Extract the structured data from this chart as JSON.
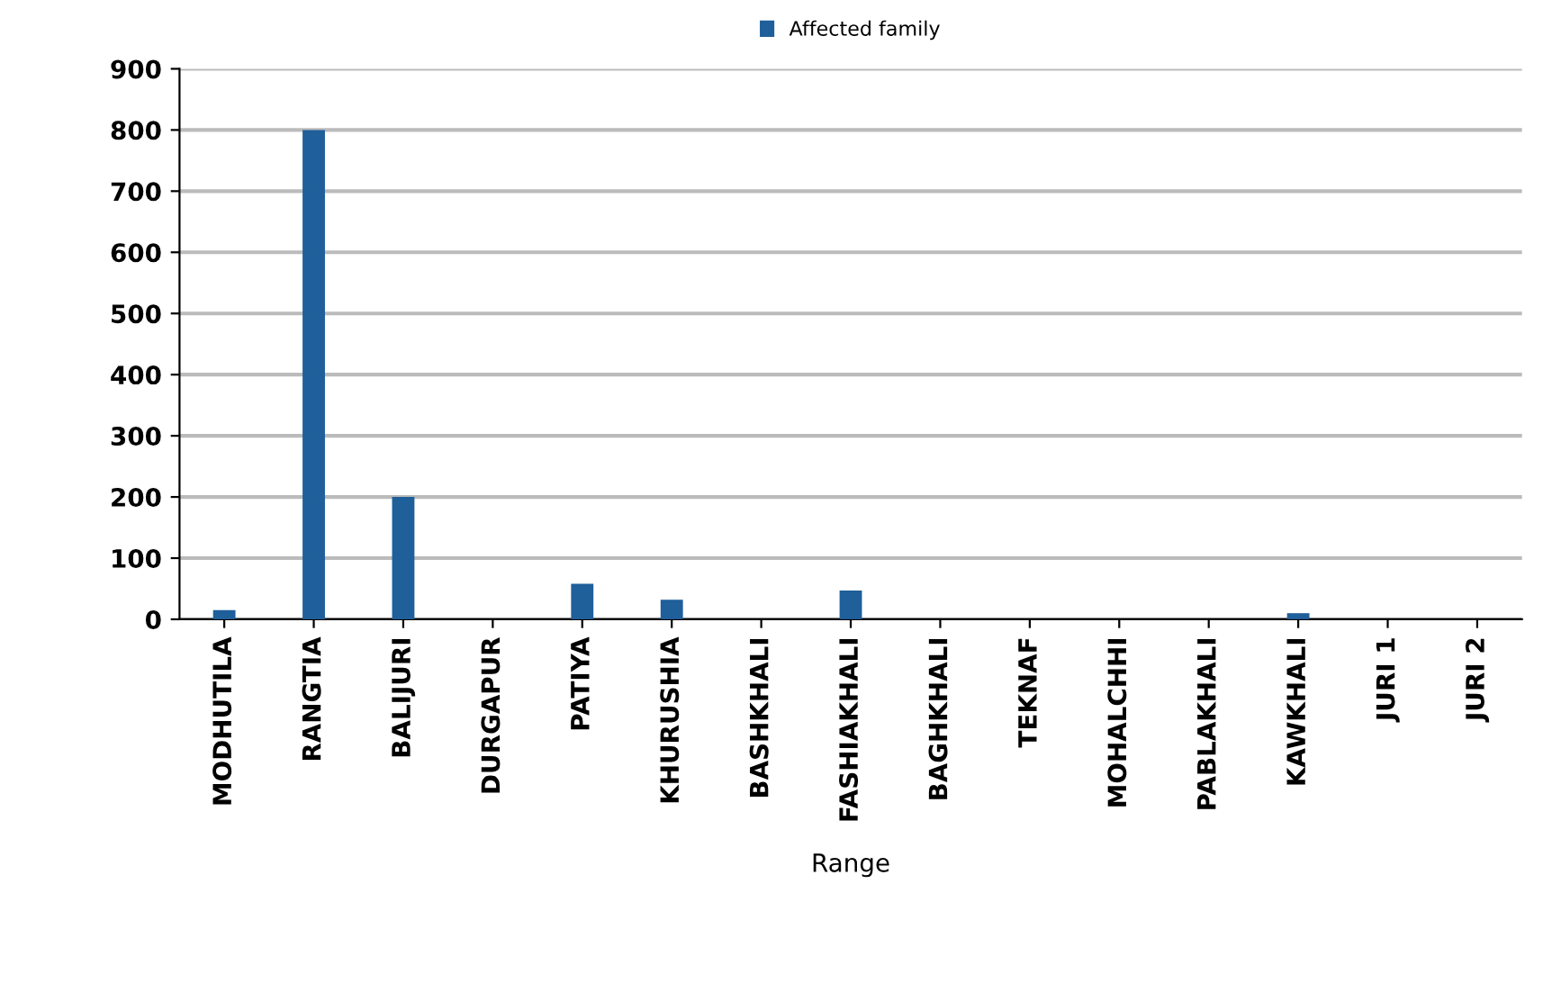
{
  "chart_data": {
    "type": "bar",
    "xlabel": "Range",
    "categories": [
      "MODHUTILA",
      "RANGTIA",
      "BALIJURI",
      "DURGAPUR",
      "PATIYA",
      "KHURUSHIA",
      "BASHKHALI",
      "FASHIAKHALI",
      "BAGHKHALI",
      "TEKNAF",
      "MOHALCHHI",
      "PABLAKHALI",
      "KAWKHALI",
      "JURI 1",
      "JURI 2"
    ],
    "series": [
      {
        "name": "Affected family",
        "color": "#1f5f9a",
        "values": [
          15,
          800,
          200,
          0,
          58,
          32,
          0,
          47,
          0,
          0,
          0,
          0,
          10,
          0,
          0
        ]
      }
    ],
    "ylim": [
      0,
      900
    ],
    "yticks": [
      0,
      100,
      200,
      300,
      400,
      500,
      600,
      700,
      800,
      900
    ],
    "grid": "y",
    "legend": "top"
  }
}
